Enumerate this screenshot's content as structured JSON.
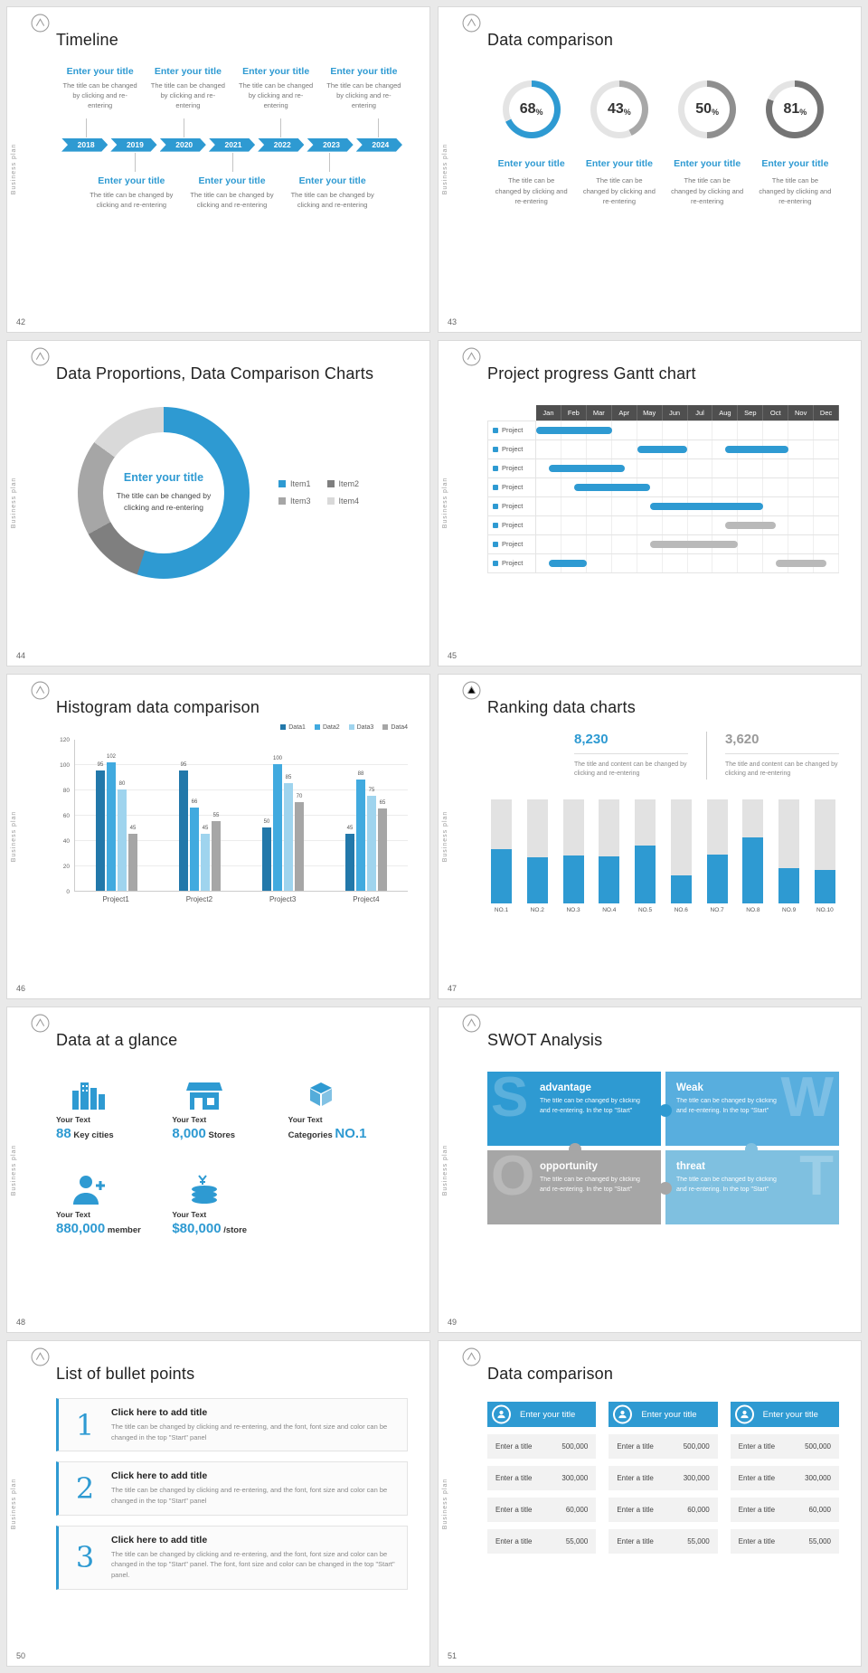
{
  "theme": {
    "accent": "#2e9ad2",
    "gray": "#a6a6a6",
    "background": "#e9e9e9",
    "slide_background": "#ffffff"
  },
  "common": {
    "vertical_label": "Business plan",
    "logo_icon": "brand-logo-icon"
  },
  "slides": {
    "s42": {
      "number": "42",
      "title": "Timeline",
      "years": [
        "2018",
        "2019",
        "2020",
        "2021",
        "2022",
        "2023",
        "2024"
      ],
      "top_items": [
        {
          "title": "Enter your title",
          "desc": "The title can be changed by clicking and re-entering"
        },
        {
          "title": "Enter your title",
          "desc": "The title can be changed by clicking and re-entering"
        },
        {
          "title": "Enter your title",
          "desc": "The title can be changed by clicking and re-entering"
        },
        {
          "title": "Enter your title",
          "desc": "The title can be changed by clicking and re-entering"
        }
      ],
      "bottom_items": [
        {
          "title": "Enter your title",
          "desc": "The title can be changed by clicking and re-entering"
        },
        {
          "title": "Enter your title",
          "desc": "The title can be changed by clicking and re-entering"
        },
        {
          "title": "Enter your title",
          "desc": "The title can be changed by clicking and re-entering"
        }
      ]
    },
    "s43": {
      "number": "43",
      "title": "Data comparison",
      "chart_data": {
        "type": "donut-progress",
        "items": [
          {
            "percent": 68,
            "ring_color": "#2e9ad2",
            "title": "Enter your title",
            "desc": "The title can be changed by clicking and re-entering"
          },
          {
            "percent": 43,
            "ring_color": "#a8a8a8",
            "title": "Enter your title",
            "desc": "The title can be changed by clicking and re-entering"
          },
          {
            "percent": 50,
            "ring_color": "#8f8f8f",
            "title": "Enter your title",
            "desc": "The title can be changed by clicking and re-entering"
          },
          {
            "percent": 81,
            "ring_color": "#747474",
            "title": "Enter your title",
            "desc": "The title can be changed by clicking and re-entering"
          }
        ]
      }
    },
    "s44": {
      "number": "44",
      "title": "Data Proportions, Data Comparison Charts",
      "center_title": "Enter your title",
      "center_desc": "The title can be changed by clicking and re-entering",
      "chart_data": {
        "type": "pie",
        "labels": [
          "Item1",
          "Item2",
          "Item3",
          "Item4"
        ],
        "values": [
          55,
          12,
          18,
          15
        ],
        "colors": [
          "#2e9ad2",
          "#7f7f7f",
          "#a6a6a6",
          "#d9d9d9"
        ]
      }
    },
    "s45": {
      "number": "45",
      "title": "Project progress Gantt chart",
      "chart_data": {
        "type": "gantt",
        "months": [
          "Jan",
          "Feb",
          "Mar",
          "Apr",
          "May",
          "Jun",
          "Jul",
          "Aug",
          "Sep",
          "Oct",
          "Nov",
          "Dec"
        ],
        "row_label": "Project",
        "rows": [
          [
            {
              "s": 0,
              "l": 3,
              "c": "b"
            }
          ],
          [
            {
              "s": 4,
              "l": 2,
              "c": "b"
            },
            {
              "s": 7.5,
              "l": 2.5,
              "c": "b"
            }
          ],
          [
            {
              "s": 0.5,
              "l": 3,
              "c": "b"
            }
          ],
          [
            {
              "s": 1.5,
              "l": 3,
              "c": "b"
            }
          ],
          [
            {
              "s": 4.5,
              "l": 4.5,
              "c": "b"
            }
          ],
          [
            {
              "s": 7.5,
              "l": 2,
              "c": "g"
            }
          ],
          [
            {
              "s": 4.5,
              "l": 3.5,
              "c": "g"
            }
          ],
          [
            {
              "s": 0.5,
              "l": 1.5,
              "c": "b"
            },
            {
              "s": 9.5,
              "l": 2,
              "c": "g"
            }
          ]
        ]
      }
    },
    "s46": {
      "number": "46",
      "title": "Histogram data comparison",
      "chart_data": {
        "type": "bar",
        "categories": [
          "Project1",
          "Project2",
          "Project3",
          "Project4"
        ],
        "series": [
          {
            "name": "Data1",
            "color": "#2278aa",
            "values": [
              95,
              95,
              50,
              45
            ]
          },
          {
            "name": "Data2",
            "color": "#41aadf",
            "values": [
              102,
              66,
              100,
              88
            ]
          },
          {
            "name": "Data3",
            "color": "#9fd4ee",
            "values": [
              80,
              45,
              85,
              75
            ]
          },
          {
            "name": "Data4",
            "color": "#a6a6a6",
            "values": [
              45,
              55,
              70,
              65
            ]
          }
        ],
        "ylim": [
          0,
          120
        ],
        "yticks": [
          0,
          20,
          40,
          60,
          80,
          100,
          120
        ]
      }
    },
    "s47": {
      "number": "47",
      "title": "Ranking data charts",
      "stat1": {
        "value": "8,230",
        "desc": "The title and content can be changed by clicking and re-entering"
      },
      "stat2": {
        "value": "3,620",
        "desc": "The title and content can be changed by clicking and re-entering"
      },
      "chart_data": {
        "type": "bar",
        "categories": [
          "NO.1",
          "NO.2",
          "NO.3",
          "NO.4",
          "NO.5",
          "NO.6",
          "NO.7",
          "NO.8",
          "NO.9",
          "NO.10"
        ],
        "values": [
          52,
          44,
          46,
          45,
          55,
          27,
          47,
          63,
          34,
          32
        ],
        "ylim": [
          0,
          100
        ],
        "track_color": "#e2e2e2",
        "bar_color": "#2e9ad2"
      }
    },
    "s48": {
      "number": "48",
      "title": "Data at a glance",
      "stats": [
        {
          "icon": "city-buildings-icon",
          "label": "Your Text",
          "big": "88",
          "rest": "Key cities"
        },
        {
          "icon": "store-icon",
          "label": "Your Text",
          "big": "8,000",
          "rest": "Stores"
        },
        {
          "icon": "package-box-icon",
          "label": "Your Text",
          "pre": "Categories",
          "big": "NO.1"
        },
        {
          "icon": "member-add-icon",
          "label": "Your Text",
          "big": "880,000",
          "rest": "member"
        },
        {
          "icon": "coins-icon",
          "label": "Your Text",
          "big": "$80,000",
          "rest": "/store"
        }
      ]
    },
    "s49": {
      "number": "49",
      "title": "SWOT Analysis",
      "quadrants": [
        {
          "letter": "S",
          "heading": "advantage",
          "desc": "The title can be changed by clicking and re-entering. In the top \"Start\"",
          "color": "#2e9ad2"
        },
        {
          "letter": "W",
          "heading": "Weak",
          "desc": "The title can be changed by clicking and re-entering. In the top \"Start\"",
          "color": "#58aede"
        },
        {
          "letter": "O",
          "heading": "opportunity",
          "desc": "The title can be changed by clicking and re-entering. In the top \"Start\"",
          "color": "#a6a6a6"
        },
        {
          "letter": "T",
          "heading": "threat",
          "desc": "The title can be changed by clicking and re-entering. In the top \"Start\"",
          "color": "#7fc0e0"
        }
      ]
    },
    "s50": {
      "number": "50",
      "title": "List of bullet points",
      "items": [
        {
          "num": "1",
          "heading": "Click here to add title",
          "desc": "The title can be changed by clicking and re-entering, and the font, font size and color can be changed in the top \"Start\" panel"
        },
        {
          "num": "2",
          "heading": "Click here to add title",
          "desc": "The title can be changed by clicking and re-entering, and the font, font size and color can be changed in the top \"Start\" panel"
        },
        {
          "num": "3",
          "heading": "Click here to add title",
          "desc": "The title can be changed by clicking and re-entering, and the font, font size and color can be changed in the top \"Start\" panel. The font, font size and color can be changed in the top \"Start\" panel."
        }
      ]
    },
    "s51": {
      "number": "51",
      "title": "Data comparison",
      "columns": [
        {
          "header": "Enter your title",
          "rows": [
            [
              "Enter a title",
              "500,000"
            ],
            [
              "Enter a title",
              "300,000"
            ],
            [
              "Enter a title",
              "60,000"
            ],
            [
              "Enter a title",
              "55,000"
            ]
          ]
        },
        {
          "header": "Enter your title",
          "rows": [
            [
              "Enter a title",
              "500,000"
            ],
            [
              "Enter a title",
              "300,000"
            ],
            [
              "Enter a title",
              "60,000"
            ],
            [
              "Enter a title",
              "55,000"
            ]
          ]
        },
        {
          "header": "Enter your title",
          "rows": [
            [
              "Enter a title",
              "500,000"
            ],
            [
              "Enter a title",
              "300,000"
            ],
            [
              "Enter a title",
              "60,000"
            ],
            [
              "Enter a title",
              "55,000"
            ]
          ]
        }
      ]
    }
  }
}
